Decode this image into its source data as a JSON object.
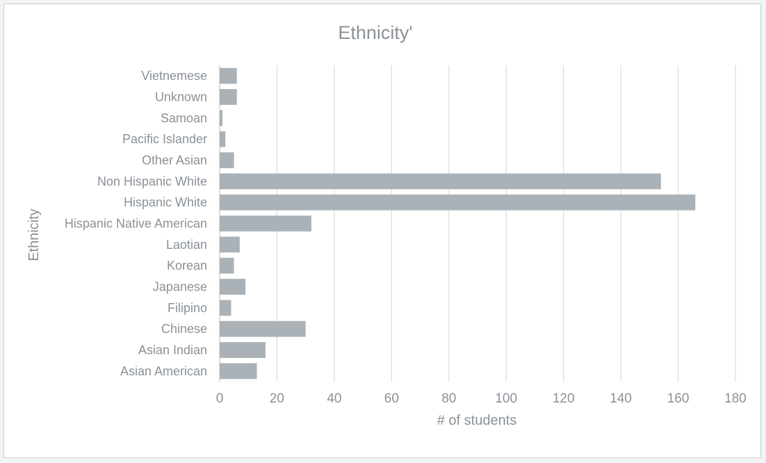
{
  "chart_data": {
    "type": "bar",
    "orientation": "horizontal",
    "title": "Ethnicity'",
    "xlabel": "# of students",
    "ylabel": "Ethnicity",
    "categories": [
      "Vietnemese",
      "Unknown",
      "Samoan",
      "Pacific Islander",
      "Other Asian",
      "Non Hispanic White",
      "Hispanic White",
      "Hispanic Native American",
      "Laotian",
      "Korean",
      "Japanese",
      "Filipino",
      "Chinese",
      "Asian Indian",
      "Asian American"
    ],
    "values": [
      6,
      6,
      1,
      2,
      5,
      154,
      166,
      32,
      7,
      5,
      9,
      4,
      30,
      16,
      13
    ],
    "xlim": [
      0,
      180
    ],
    "xticks": [
      "0",
      "20",
      "40",
      "60",
      "80",
      "100",
      "120",
      "140",
      "160",
      "180"
    ],
    "grid": true,
    "legend": "none",
    "colors": {
      "bar": "#aab2b7",
      "text": "#8a9197",
      "grid": "#d9dbdd",
      "axis": "#c4c7ca"
    }
  }
}
